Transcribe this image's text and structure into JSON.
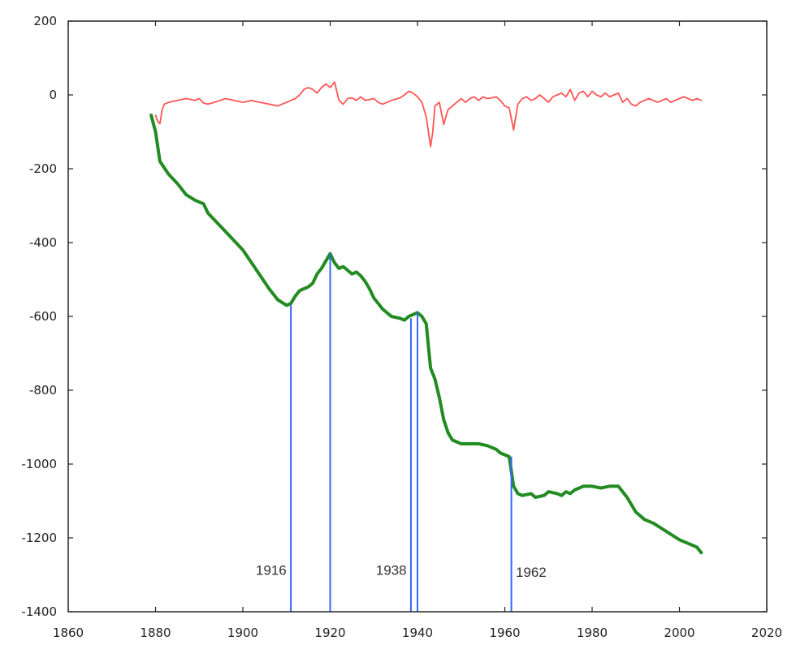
{
  "chart_data": {
    "type": "line",
    "title": "",
    "xlabel": "",
    "ylabel": "",
    "xlim": [
      1860,
      2020
    ],
    "ylim": [
      -1400,
      200
    ],
    "x_ticks": [
      1860,
      1880,
      1900,
      1920,
      1940,
      1960,
      1980,
      2000,
      2020
    ],
    "y_ticks": [
      200,
      0,
      -200,
      -400,
      -600,
      -800,
      -1000,
      -1200,
      -1400
    ],
    "grid": false,
    "legend": "none",
    "series": [
      {
        "color": "#ff5555",
        "points": [
          [
            1880,
            -55
          ],
          [
            1880.5,
            -72
          ],
          [
            1881,
            -78
          ],
          [
            1881.5,
            -40
          ],
          [
            1882,
            -25
          ],
          [
            1883,
            -20
          ],
          [
            1885,
            -15
          ],
          [
            1887,
            -10
          ],
          [
            1889,
            -15
          ],
          [
            1890,
            -10
          ],
          [
            1891,
            -22
          ],
          [
            1892,
            -25
          ],
          [
            1894,
            -18
          ],
          [
            1896,
            -10
          ],
          [
            1898,
            -15
          ],
          [
            1900,
            -20
          ],
          [
            1902,
            -15
          ],
          [
            1903,
            -18
          ],
          [
            1904,
            -20
          ],
          [
            1906,
            -25
          ],
          [
            1908,
            -30
          ],
          [
            1910,
            -20
          ],
          [
            1911,
            -15
          ],
          [
            1912,
            -10
          ],
          [
            1913,
            0
          ],
          [
            1914,
            15
          ],
          [
            1915,
            20
          ],
          [
            1916,
            15
          ],
          [
            1917,
            5
          ],
          [
            1918,
            20
          ],
          [
            1919,
            30
          ],
          [
            1920,
            20
          ],
          [
            1921,
            35
          ],
          [
            1922,
            -15
          ],
          [
            1923,
            -25
          ],
          [
            1924,
            -10
          ],
          [
            1925,
            -8
          ],
          [
            1926,
            -15
          ],
          [
            1927,
            -5
          ],
          [
            1928,
            -15
          ],
          [
            1930,
            -10
          ],
          [
            1931,
            -20
          ],
          [
            1932,
            -25
          ],
          [
            1934,
            -15
          ],
          [
            1936,
            -8
          ],
          [
            1937,
            0
          ],
          [
            1938,
            10
          ],
          [
            1939,
            5
          ],
          [
            1940,
            -5
          ],
          [
            1941,
            -20
          ],
          [
            1942,
            -60
          ],
          [
            1943,
            -140
          ],
          [
            1943.5,
            -100
          ],
          [
            1944,
            -30
          ],
          [
            1945,
            -20
          ],
          [
            1946,
            -80
          ],
          [
            1946.5,
            -60
          ],
          [
            1947,
            -40
          ],
          [
            1948,
            -30
          ],
          [
            1949,
            -20
          ],
          [
            1950,
            -10
          ],
          [
            1951,
            -20
          ],
          [
            1952,
            -10
          ],
          [
            1953,
            -5
          ],
          [
            1954,
            -15
          ],
          [
            1955,
            -5
          ],
          [
            1956,
            -10
          ],
          [
            1957,
            -8
          ],
          [
            1958,
            -5
          ],
          [
            1959,
            -15
          ],
          [
            1960,
            -30
          ],
          [
            1961,
            -35
          ],
          [
            1962,
            -95
          ],
          [
            1962.5,
            -60
          ],
          [
            1963,
            -25
          ],
          [
            1964,
            -10
          ],
          [
            1965,
            -5
          ],
          [
            1966,
            -15
          ],
          [
            1967,
            -10
          ],
          [
            1968,
            0
          ],
          [
            1969,
            -10
          ],
          [
            1970,
            -20
          ],
          [
            1971,
            -5
          ],
          [
            1972,
            0
          ],
          [
            1973,
            5
          ],
          [
            1974,
            -5
          ],
          [
            1975,
            15
          ],
          [
            1976,
            -15
          ],
          [
            1977,
            5
          ],
          [
            1978,
            10
          ],
          [
            1979,
            -5
          ],
          [
            1980,
            10
          ],
          [
            1981,
            0
          ],
          [
            1982,
            -5
          ],
          [
            1983,
            5
          ],
          [
            1984,
            -5
          ],
          [
            1985,
            0
          ],
          [
            1986,
            5
          ],
          [
            1987,
            -20
          ],
          [
            1988,
            -10
          ],
          [
            1989,
            -25
          ],
          [
            1990,
            -30
          ],
          [
            1991,
            -20
          ],
          [
            1992,
            -15
          ],
          [
            1993,
            -10
          ],
          [
            1994,
            -15
          ],
          [
            1995,
            -20
          ],
          [
            1996,
            -15
          ],
          [
            1997,
            -10
          ],
          [
            1998,
            -20
          ],
          [
            1999,
            -15
          ],
          [
            2000,
            -10
          ],
          [
            2001,
            -5
          ],
          [
            2002,
            -10
          ],
          [
            2003,
            -15
          ],
          [
            2004,
            -10
          ],
          [
            2005,
            -15
          ]
        ]
      },
      {
        "color": "#228b22",
        "points": [
          [
            1879,
            -55
          ],
          [
            1880,
            -100
          ],
          [
            1881,
            -180
          ],
          [
            1883,
            -215
          ],
          [
            1885,
            -240
          ],
          [
            1887,
            -270
          ],
          [
            1889,
            -285
          ],
          [
            1891,
            -295
          ],
          [
            1892,
            -320
          ],
          [
            1894,
            -345
          ],
          [
            1896,
            -370
          ],
          [
            1898,
            -395
          ],
          [
            1900,
            -420
          ],
          [
            1902,
            -455
          ],
          [
            1904,
            -490
          ],
          [
            1906,
            -525
          ],
          [
            1908,
            -555
          ],
          [
            1910,
            -570
          ],
          [
            1911,
            -565
          ],
          [
            1912,
            -545
          ],
          [
            1913,
            -530
          ],
          [
            1915,
            -520
          ],
          [
            1916,
            -510
          ],
          [
            1917,
            -485
          ],
          [
            1918,
            -470
          ],
          [
            1919,
            -450
          ],
          [
            1920,
            -430
          ],
          [
            1921,
            -455
          ],
          [
            1922,
            -470
          ],
          [
            1923,
            -465
          ],
          [
            1924,
            -475
          ],
          [
            1925,
            -485
          ],
          [
            1926,
            -480
          ],
          [
            1927,
            -490
          ],
          [
            1928,
            -505
          ],
          [
            1929,
            -525
          ],
          [
            1930,
            -550
          ],
          [
            1932,
            -580
          ],
          [
            1934,
            -600
          ],
          [
            1936,
            -605
          ],
          [
            1937,
            -610
          ],
          [
            1938,
            -600
          ],
          [
            1939,
            -595
          ],
          [
            1940,
            -590
          ],
          [
            1941,
            -600
          ],
          [
            1942,
            -620
          ],
          [
            1942.5,
            -680
          ],
          [
            1943,
            -740
          ],
          [
            1944,
            -770
          ],
          [
            1945,
            -820
          ],
          [
            1946,
            -880
          ],
          [
            1947,
            -915
          ],
          [
            1948,
            -935
          ],
          [
            1950,
            -945
          ],
          [
            1952,
            -945
          ],
          [
            1954,
            -945
          ],
          [
            1956,
            -950
          ],
          [
            1958,
            -960
          ],
          [
            1959,
            -970
          ],
          [
            1961,
            -980
          ],
          [
            1962,
            -1060
          ],
          [
            1963,
            -1080
          ],
          [
            1964,
            -1085
          ],
          [
            1966,
            -1080
          ],
          [
            1967,
            -1090
          ],
          [
            1969,
            -1085
          ],
          [
            1970,
            -1075
          ],
          [
            1972,
            -1080
          ],
          [
            1973,
            -1085
          ],
          [
            1974,
            -1075
          ],
          [
            1975,
            -1080
          ],
          [
            1976,
            -1070
          ],
          [
            1977,
            -1065
          ],
          [
            1978,
            -1060
          ],
          [
            1980,
            -1060
          ],
          [
            1982,
            -1065
          ],
          [
            1984,
            -1060
          ],
          [
            1986,
            -1060
          ],
          [
            1987,
            -1075
          ],
          [
            1988,
            -1090
          ],
          [
            1989,
            -1110
          ],
          [
            1990,
            -1130
          ],
          [
            1992,
            -1150
          ],
          [
            1994,
            -1160
          ],
          [
            1996,
            -1175
          ],
          [
            1998,
            -1190
          ],
          [
            2000,
            -1205
          ],
          [
            2002,
            -1215
          ],
          [
            2004,
            -1225
          ],
          [
            2005,
            -1240
          ]
        ]
      }
    ],
    "vertical_lines": [
      {
        "x": 1911,
        "y_top": -570,
        "color": "#3366ff"
      },
      {
        "x": 1920,
        "y_top": -430,
        "color": "#3366ff"
      },
      {
        "x": 1938.5,
        "y_top": -605,
        "color": "#3366ff"
      },
      {
        "x": 1940,
        "y_top": -590,
        "color": "#3366ff"
      },
      {
        "x": 1961.5,
        "y_top": -980,
        "color": "#3366ff"
      }
    ],
    "annotations": [
      {
        "text": "1916",
        "x": 1910,
        "y": -1300
      },
      {
        "text": "1938",
        "x": 1937.5,
        "y": -1300
      },
      {
        "text": "1962",
        "x": 1962.5,
        "y": -1305
      }
    ]
  }
}
